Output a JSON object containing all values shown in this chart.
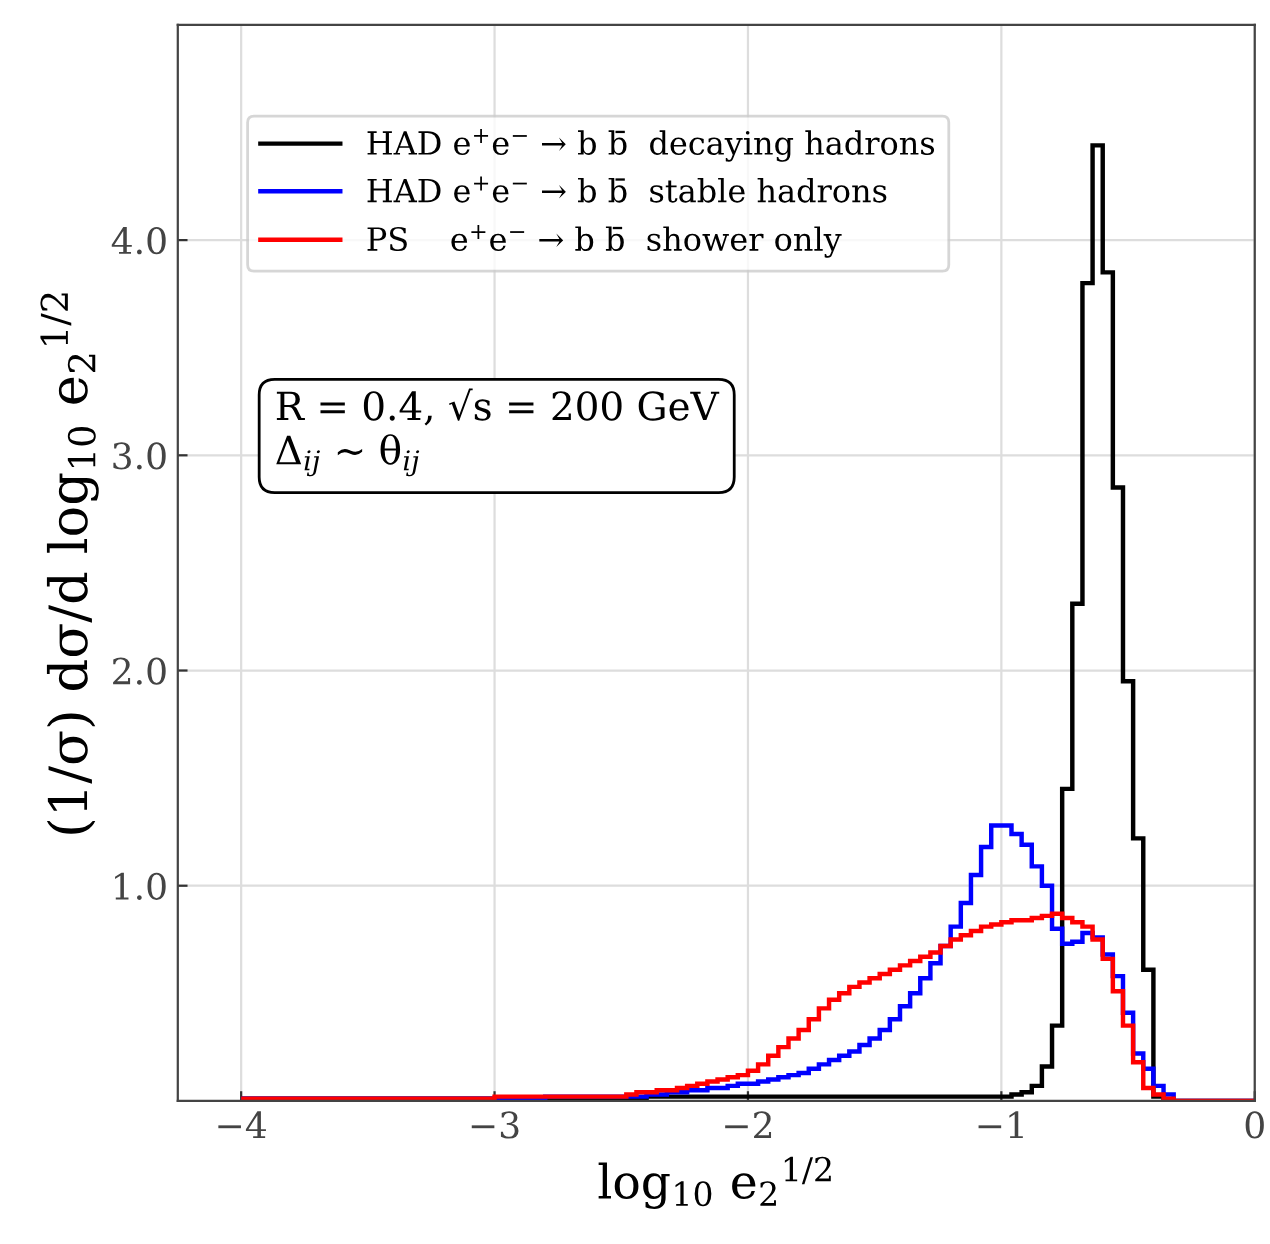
{
  "chart_data": {
    "type": "histogram",
    "xlabel": "log$_{10}$ e$_{2}$$^{1/2}$",
    "ylabel": "(1/σ) dσ/d log$_{10}$ e$_{2}$$^{1/2}$",
    "bins": [
      -4.0,
      -3.96,
      -3.92,
      -3.88,
      -3.84,
      -3.8,
      -3.76,
      -3.72,
      -3.68,
      -3.64,
      -3.6,
      -3.56,
      -3.52,
      -3.48,
      -3.44,
      -3.4,
      -3.36,
      -3.32,
      -3.28,
      -3.24,
      -3.2,
      -3.16,
      -3.12,
      -3.08,
      -3.04,
      -3.0,
      -2.96,
      -2.92,
      -2.88,
      -2.84,
      -2.8,
      -2.76,
      -2.72,
      -2.68,
      -2.64,
      -2.6,
      -2.56,
      -2.52,
      -2.48,
      -2.44,
      -2.4,
      -2.36,
      -2.32,
      -2.28,
      -2.24,
      -2.2,
      -2.16,
      -2.12,
      -2.08,
      -2.04,
      -2.0,
      -1.96,
      -1.92,
      -1.88,
      -1.84,
      -1.8,
      -1.76,
      -1.72,
      -1.68,
      -1.64,
      -1.6,
      -1.56,
      -1.52,
      -1.48,
      -1.44,
      -1.4,
      -1.36,
      -1.32,
      -1.28,
      -1.24,
      -1.2,
      -1.16,
      -1.12,
      -1.08,
      -1.04,
      -1.0,
      -0.96,
      -0.92,
      -0.88,
      -0.84,
      -0.8,
      -0.76,
      -0.72,
      -0.68,
      -0.64,
      -0.6,
      -0.56,
      -0.52,
      -0.48,
      -0.44,
      -0.4,
      -0.36,
      -0.32,
      -0.28,
      -0.24,
      -0.2,
      -0.16,
      -0.12,
      -0.08,
      -0.04,
      0.0
    ],
    "series": [
      {
        "name": "HAD e$^{+}$e$^{−}$ → b b̄  decaying hadrons",
        "color": "#000000",
        "values": [
          0.01,
          0.01,
          0.01,
          0.01,
          0.01,
          0.01,
          0.01,
          0.01,
          0.01,
          0.01,
          0.01,
          0.01,
          0.01,
          0.01,
          0.01,
          0.01,
          0.01,
          0.01,
          0.01,
          0.01,
          0.01,
          0.01,
          0.01,
          0.01,
          0.01,
          0.01,
          0.01,
          0.01,
          0.01,
          0.01,
          0.01,
          0.01,
          0.01,
          0.01,
          0.01,
          0.01,
          0.01,
          0.01,
          0.01,
          0.01,
          0.02,
          0.02,
          0.02,
          0.02,
          0.02,
          0.02,
          0.02,
          0.02,
          0.02,
          0.02,
          0.02,
          0.02,
          0.02,
          0.02,
          0.02,
          0.02,
          0.02,
          0.02,
          0.02,
          0.02,
          0.02,
          0.02,
          0.02,
          0.02,
          0.02,
          0.02,
          0.02,
          0.02,
          0.02,
          0.02,
          0.02,
          0.02,
          0.02,
          0.02,
          0.02,
          0.02,
          0.03,
          0.04,
          0.07,
          0.16,
          0.35,
          1.45,
          2.31,
          3.8,
          4.44,
          3.85,
          2.85,
          1.95,
          1.22,
          0.61,
          0.02,
          0,
          0,
          0,
          0,
          0,
          0,
          0,
          0,
          0
        ]
      },
      {
        "name": "HAD e$^{+}$e$^{−}$ → b b̄  stable hadrons",
        "color": "#0000ff",
        "values": [
          0.01,
          0.01,
          0.01,
          0.01,
          0.01,
          0.01,
          0.01,
          0.01,
          0.01,
          0.01,
          0.01,
          0.01,
          0.01,
          0.01,
          0.01,
          0.01,
          0.01,
          0.01,
          0.01,
          0.01,
          0.01,
          0.01,
          0.01,
          0.01,
          0.01,
          0.01,
          0.01,
          0.01,
          0.01,
          0.01,
          0.02,
          0.02,
          0.02,
          0.02,
          0.02,
          0.02,
          0.02,
          0.02,
          0.02,
          0.02,
          0.03,
          0.03,
          0.04,
          0.04,
          0.05,
          0.05,
          0.06,
          0.06,
          0.07,
          0.08,
          0.08,
          0.09,
          0.1,
          0.11,
          0.12,
          0.13,
          0.15,
          0.17,
          0.19,
          0.21,
          0.23,
          0.26,
          0.29,
          0.33,
          0.38,
          0.44,
          0.5,
          0.57,
          0.64,
          0.72,
          0.81,
          0.92,
          1.05,
          1.18,
          1.28,
          1.28,
          1.24,
          1.19,
          1.09,
          1.0,
          0.8,
          0.73,
          0.74,
          0.78,
          0.76,
          0.68,
          0.58,
          0.41,
          0.22,
          0.15,
          0.07,
          0.03,
          0,
          0,
          0,
          0,
          0,
          0,
          0,
          0
        ]
      },
      {
        "name": "PS    e$^{+}$e$^{−}$ → b b̄  shower only",
        "color": "#ff0000",
        "values": [
          0.01,
          0.01,
          0.01,
          0.01,
          0.01,
          0.01,
          0.01,
          0.01,
          0.01,
          0.01,
          0.01,
          0.01,
          0.01,
          0.01,
          0.01,
          0.01,
          0.01,
          0.01,
          0.01,
          0.01,
          0.01,
          0.01,
          0.01,
          0.01,
          0.01,
          0.02,
          0.02,
          0.02,
          0.02,
          0.02,
          0.02,
          0.02,
          0.02,
          0.02,
          0.02,
          0.02,
          0.02,
          0.02,
          0.03,
          0.04,
          0.04,
          0.05,
          0.05,
          0.06,
          0.07,
          0.08,
          0.09,
          0.1,
          0.11,
          0.12,
          0.14,
          0.17,
          0.21,
          0.25,
          0.29,
          0.33,
          0.38,
          0.43,
          0.47,
          0.5,
          0.53,
          0.55,
          0.57,
          0.59,
          0.61,
          0.63,
          0.65,
          0.67,
          0.69,
          0.72,
          0.75,
          0.77,
          0.79,
          0.81,
          0.82,
          0.83,
          0.84,
          0.84,
          0.85,
          0.86,
          0.87,
          0.85,
          0.83,
          0.81,
          0.75,
          0.66,
          0.51,
          0.35,
          0.18,
          0.06,
          0.03,
          0.01,
          0,
          0,
          0,
          0,
          0,
          0,
          0,
          0
        ]
      }
    ],
    "annotations": [
      "R = 0.4, √s = 200 GeV\nΔ$_{ij}$ ∼ θ$_{ij}$"
    ],
    "xlim": [
      -4.25,
      0
    ],
    "ylim": [
      0,
      5.0
    ],
    "xticks": [
      {
        "value": -4,
        "label": "−4"
      },
      {
        "value": -3,
        "label": "−3"
      },
      {
        "value": -2,
        "label": "−2"
      },
      {
        "value": -1,
        "label": "−1"
      },
      0
    ],
    "yticks": [
      {
        "value": 1,
        "label": "1.0"
      },
      {
        "value": 2,
        "label": "2.0"
      },
      {
        "value": 3,
        "label": "3.0"
      },
      {
        "value": 4,
        "label": "4.0"
      }
    ],
    "grid": true,
    "legend": "top left"
  }
}
